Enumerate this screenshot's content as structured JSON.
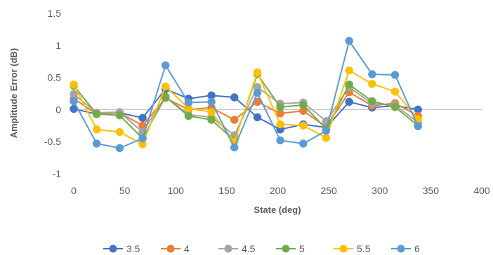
{
  "chart_data": {
    "type": "line",
    "title": "",
    "xlabel": "State (deg)",
    "ylabel": "Amplitude Error (dB)",
    "xlim": [
      0,
      400
    ],
    "ylim": [
      -1,
      1.5
    ],
    "x_ticks": [
      0,
      50,
      100,
      150,
      200,
      250,
      300,
      350,
      400
    ],
    "y_ticks": [
      -1,
      -0.5,
      0,
      0.5,
      1,
      1.5
    ],
    "y_tick_labels": [
      "-1",
      "-0.5",
      "0",
      "0.5",
      "1",
      "1.5"
    ],
    "grid": false,
    "legend_position": "bottom",
    "x": [
      0,
      22.5,
      45,
      67.5,
      90,
      112.5,
      135,
      157.5,
      180,
      202.5,
      225,
      247.5,
      270,
      292.5,
      315,
      337.5
    ],
    "series": [
      {
        "name": "3.5",
        "color": "#4472C4",
        "values": [
          0.01,
          -0.07,
          -0.05,
          -0.13,
          0.32,
          0.17,
          0.22,
          0.19,
          -0.12,
          -0.31,
          -0.23,
          -0.28,
          0.12,
          0.03,
          0.06,
          0.0
        ]
      },
      {
        "name": "4",
        "color": "#ED7D31",
        "values": [
          0.17,
          -0.07,
          -0.05,
          -0.25,
          0.18,
          0.0,
          0.03,
          -0.16,
          0.12,
          -0.06,
          -0.02,
          -0.27,
          0.27,
          0.06,
          0.1,
          -0.1
        ]
      },
      {
        "name": "4.5",
        "color": "#A5A5A5",
        "values": [
          0.24,
          -0.05,
          -0.04,
          -0.35,
          0.2,
          -0.08,
          -0.12,
          -0.4,
          0.35,
          0.09,
          0.11,
          -0.18,
          0.35,
          0.09,
          0.07,
          -0.2
        ]
      },
      {
        "name": "5",
        "color": "#70AD47",
        "values": [
          0.37,
          -0.07,
          -0.09,
          -0.45,
          0.2,
          -0.1,
          -0.16,
          -0.48,
          0.55,
          0.04,
          0.07,
          -0.3,
          0.39,
          0.13,
          0.04,
          -0.25
        ]
      },
      {
        "name": "5.5",
        "color": "#FFC000",
        "values": [
          0.39,
          -0.31,
          -0.35,
          -0.54,
          0.36,
          0.02,
          -0.04,
          -0.5,
          0.58,
          -0.23,
          -0.25,
          -0.44,
          0.61,
          0.4,
          0.28,
          -0.15
        ]
      },
      {
        "name": "6",
        "color": "#5B9BD5",
        "values": [
          0.13,
          -0.53,
          -0.6,
          -0.45,
          0.69,
          0.11,
          0.12,
          -0.59,
          0.26,
          -0.48,
          -0.53,
          -0.33,
          1.07,
          0.55,
          0.54,
          -0.26
        ]
      }
    ]
  }
}
